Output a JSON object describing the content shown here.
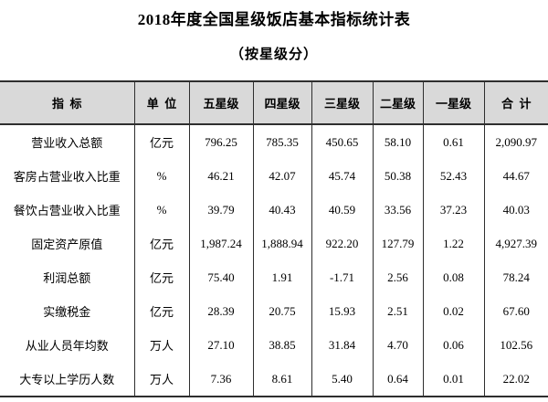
{
  "page": {
    "background_color": "#ffffff",
    "text_color": "#000000"
  },
  "title": "2018年度全国星级饭店基本指标统计表",
  "subtitle": "（按星级分）",
  "table": {
    "header_bg_color": "#d9d9d9",
    "border_color": "#2e2e2e",
    "columns": [
      "指  标",
      "单  位",
      "五星级",
      "四星级",
      "三星级",
      "二星级",
      "一星级",
      "合  计"
    ],
    "rows": [
      [
        "营业收入总额",
        "亿元",
        "796.25",
        "785.35",
        "450.65",
        "58.10",
        "0.61",
        "2,090.97"
      ],
      [
        "客房占营业收入比重",
        "%",
        "46.21",
        "42.07",
        "45.74",
        "50.38",
        "52.43",
        "44.67"
      ],
      [
        "餐饮占营业收入比重",
        "%",
        "39.79",
        "40.43",
        "40.59",
        "33.56",
        "37.23",
        "40.03"
      ],
      [
        "固定资产原值",
        "亿元",
        "1,987.24",
        "1,888.94",
        "922.20",
        "127.79",
        "1.22",
        "4,927.39"
      ],
      [
        "利润总额",
        "亿元",
        "75.40",
        "1.91",
        "-1.71",
        "2.56",
        "0.08",
        "78.24"
      ],
      [
        "实缴税金",
        "亿元",
        "28.39",
        "20.75",
        "15.93",
        "2.51",
        "0.02",
        "67.60"
      ],
      [
        "从业人员年均数",
        "万人",
        "27.10",
        "38.85",
        "31.84",
        "4.70",
        "0.06",
        "102.56"
      ],
      [
        "大专以上学历人数",
        "万人",
        "7.36",
        "8.61",
        "5.40",
        "0.64",
        "0.01",
        "22.02"
      ]
    ]
  },
  "chart_data": {
    "type": "table",
    "title": "2018年度全国星级饭店基本指标统计表（按星级分）",
    "columns": [
      "指标",
      "单位",
      "五星级",
      "四星级",
      "三星级",
      "二星级",
      "一星级",
      "合计"
    ],
    "rows": [
      [
        "营业收入总额",
        "亿元",
        796.25,
        785.35,
        450.65,
        58.1,
        0.61,
        2090.97
      ],
      [
        "客房占营业收入比重",
        "%",
        46.21,
        42.07,
        45.74,
        50.38,
        52.43,
        44.67
      ],
      [
        "餐饮占营业收入比重",
        "%",
        39.79,
        40.43,
        40.59,
        33.56,
        37.23,
        40.03
      ],
      [
        "固定资产原值",
        "亿元",
        1987.24,
        1888.94,
        922.2,
        127.79,
        1.22,
        4927.39
      ],
      [
        "利润总额",
        "亿元",
        75.4,
        1.91,
        -1.71,
        2.56,
        0.08,
        78.24
      ],
      [
        "实缴税金",
        "亿元",
        28.39,
        20.75,
        15.93,
        2.51,
        0.02,
        67.6
      ],
      [
        "从业人员年均数",
        "万人",
        27.1,
        38.85,
        31.84,
        4.7,
        0.06,
        102.56
      ],
      [
        "大专以上学历人数",
        "万人",
        7.36,
        8.61,
        5.4,
        0.64,
        0.01,
        22.02
      ]
    ]
  }
}
